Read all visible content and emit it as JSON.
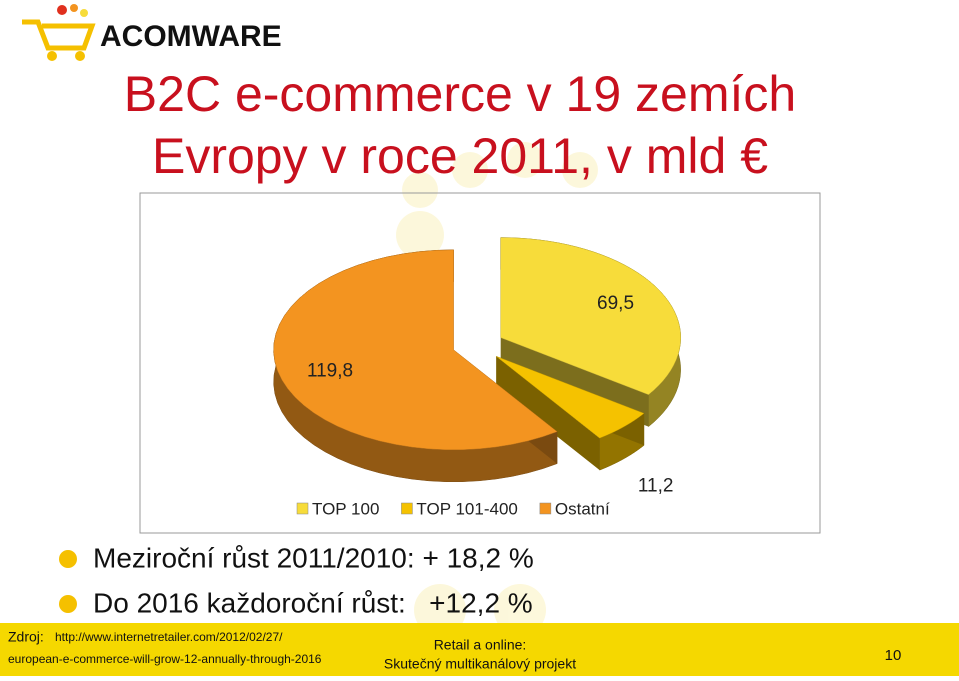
{
  "logo": "ACOMWARE",
  "title_lines": [
    "B2C e-commerce v 19 zemích",
    "Evropy v roce 2011, v mld €"
  ],
  "chart_data": {
    "type": "pie",
    "categories": [
      "TOP 100",
      "TOP 101-400",
      "Ostatní"
    ],
    "values": [
      69.5,
      11.2,
      119.8
    ],
    "value_labels": [
      "69,5",
      "11,2",
      "119,8"
    ],
    "colors": [
      "#f7dc3a",
      "#f5c200",
      "#f39420"
    ],
    "legend": "bottom"
  },
  "bullets": [
    "Meziroční růst 2011/2010: + 18,2 %",
    "Do 2016 každoroční růst:   +12,2 %"
  ],
  "footer": {
    "source_label": "Zdroj:",
    "source_line1": "http://www.internetretailer.com/2012/02/27/",
    "source_line2": "european-e-commerce-will-grow-12-annually-through-2016",
    "center_line1": "Retail a online:",
    "center_line2": "Skutečný multikanálový projekt",
    "page": "10"
  }
}
